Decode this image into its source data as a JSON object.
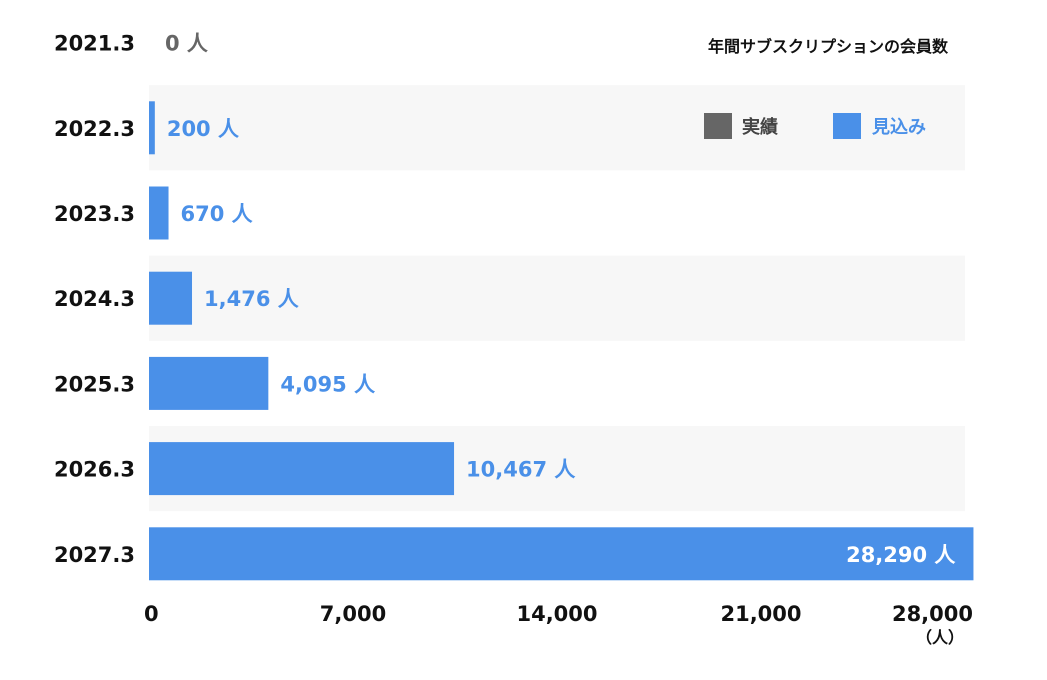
{
  "chart_data": {
    "type": "bar",
    "orientation": "horizontal",
    "title": "年間サブスクリプションの会員数",
    "categories": [
      "2021.3",
      "2022.3",
      "2023.3",
      "2024.3",
      "2025.3",
      "2026.3",
      "2027.3"
    ],
    "values": [
      0,
      200,
      670,
      1476,
      4095,
      10467,
      28290
    ],
    "value_labels": [
      "0 人",
      "200 人",
      "670 人",
      "1,476 人",
      "4,095 人",
      "10,467 人",
      "28,290 人"
    ],
    "status": [
      "actual",
      "forecast",
      "forecast",
      "forecast",
      "forecast",
      "forecast",
      "forecast"
    ],
    "xlim": [
      0,
      28000
    ],
    "x_ticks": [
      "0",
      "7,000",
      "14,000",
      "21,000",
      "28,000"
    ],
    "x_tick_values": [
      0,
      7000,
      14000,
      21000,
      28000
    ],
    "x_unit": "（人）",
    "grid": false,
    "legend": {
      "placement": "top-right",
      "entries": [
        {
          "label": "実績",
          "color": "#666666"
        },
        {
          "label": "見込み",
          "color": "#4a90e8"
        }
      ]
    },
    "colors": {
      "actual": "#666666",
      "forecast": "#4a90e8",
      "row_band": "#f7f7f7"
    }
  }
}
